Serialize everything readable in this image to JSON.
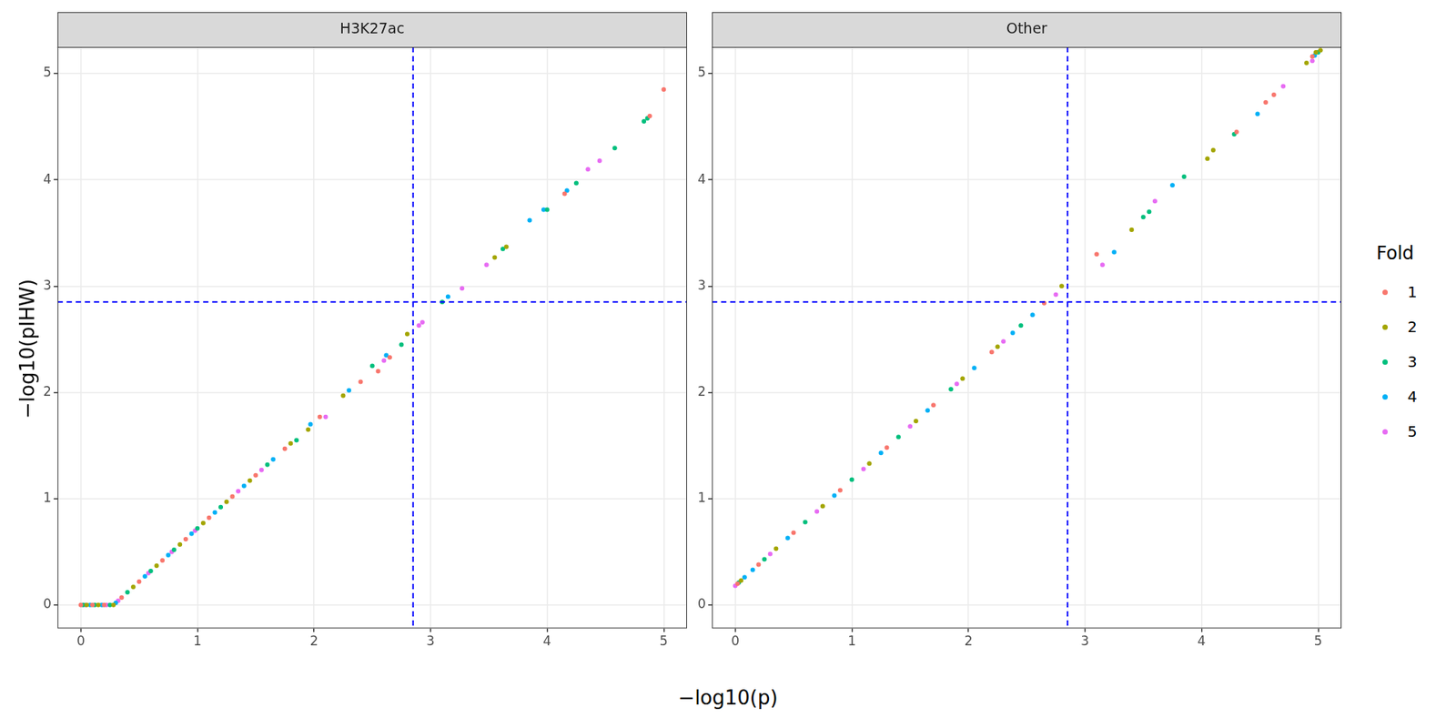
{
  "x_label": "−log10(p)",
  "y_label": "−log10(pIHW)",
  "legend_title": "Fold",
  "chart_data": [
    {
      "type": "scatter",
      "title": "H3K27ac",
      "grid": true,
      "xlim": [
        -0.2,
        5.2
      ],
      "xticks": [
        0,
        1,
        2,
        3,
        4,
        5
      ],
      "ylim": [
        -0.22,
        5.25
      ],
      "yticks": [
        0,
        1,
        2,
        3,
        4,
        5
      ],
      "reference_lines": {
        "x": [
          2.85
        ],
        "y": [
          2.85
        ],
        "color": "#0000ff",
        "line_style": "dashed"
      },
      "series": [
        {
          "name": "1",
          "color": "#F8766D",
          "x": [
            0,
            0.1,
            0.2,
            0.35,
            0.5,
            0.7,
            0.9,
            1.1,
            1.3,
            1.5,
            1.75,
            2.05,
            2.4,
            2.55,
            2.65,
            4.15,
            4.88,
            5.0
          ],
          "values": [
            0,
            0,
            0,
            0.07,
            0.22,
            0.42,
            0.62,
            0.82,
            1.02,
            1.22,
            1.47,
            1.77,
            2.1,
            2.2,
            2.33,
            3.87,
            4.6,
            4.85
          ]
        },
        {
          "name": "2",
          "color": "#A3A500",
          "x": [
            0.05,
            0.15,
            0.28,
            0.45,
            0.65,
            0.85,
            1.05,
            1.25,
            1.45,
            1.8,
            1.95,
            2.25,
            2.8,
            3.55,
            3.65
          ],
          "values": [
            0,
            0,
            0,
            0.17,
            0.37,
            0.57,
            0.77,
            0.97,
            1.17,
            1.52,
            1.65,
            1.97,
            2.55,
            3.27,
            3.37
          ]
        },
        {
          "name": "3",
          "color": "#00BF7D",
          "x": [
            0.02,
            0.12,
            0.25,
            0.4,
            0.6,
            0.8,
            1.0,
            1.2,
            1.6,
            1.85,
            2.5,
            2.75,
            3.1,
            3.62,
            4.0,
            4.25,
            4.58,
            4.83,
            4.86
          ],
          "values": [
            0,
            0,
            0,
            0.12,
            0.32,
            0.52,
            0.72,
            0.92,
            1.32,
            1.55,
            2.25,
            2.45,
            2.85,
            3.35,
            3.72,
            3.97,
            4.3,
            4.55,
            4.58
          ]
        },
        {
          "name": "4",
          "color": "#00B0F6",
          "x": [
            0.08,
            0.18,
            0.3,
            0.55,
            0.75,
            0.95,
            1.15,
            1.4,
            1.65,
            1.97,
            2.3,
            2.62,
            3.15,
            3.85,
            3.97,
            4.17
          ],
          "values": [
            0,
            0,
            0.02,
            0.27,
            0.47,
            0.67,
            0.87,
            1.12,
            1.37,
            1.7,
            2.02,
            2.35,
            2.9,
            3.62,
            3.72,
            3.9
          ]
        },
        {
          "name": "5",
          "color": "#E76BF3",
          "x": [
            0.04,
            0.22,
            0.32,
            0.58,
            0.78,
            0.98,
            1.35,
            1.55,
            2.1,
            2.6,
            2.9,
            2.93,
            3.27,
            3.48,
            4.35,
            4.45
          ],
          "values": [
            0,
            0,
            0.04,
            0.3,
            0.5,
            0.7,
            1.07,
            1.27,
            1.77,
            2.3,
            2.63,
            2.66,
            2.98,
            3.2,
            4.1,
            4.18
          ]
        }
      ]
    },
    {
      "type": "scatter",
      "title": "Other",
      "grid": true,
      "legend": "right",
      "xlim": [
        -0.2,
        5.2
      ],
      "xticks": [
        0,
        1,
        2,
        3,
        4,
        5
      ],
      "ylim": [
        -0.22,
        5.25
      ],
      "yticks": [
        0,
        1,
        2,
        3,
        4,
        5
      ],
      "reference_lines": {
        "x": [
          2.85
        ],
        "y": [
          2.85
        ],
        "color": "#0000ff",
        "line_style": "dashed"
      },
      "series": [
        {
          "name": "1",
          "color": "#F8766D",
          "x": [
            0.02,
            0.2,
            0.5,
            0.9,
            1.3,
            1.7,
            2.2,
            2.65,
            3.1,
            4.3,
            4.55,
            4.62,
            4.95
          ],
          "values": [
            0.2,
            0.38,
            0.68,
            1.08,
            1.48,
            1.88,
            2.38,
            2.84,
            3.3,
            4.45,
            4.73,
            4.8,
            5.16
          ]
        },
        {
          "name": "2",
          "color": "#A3A500",
          "x": [
            0.05,
            0.35,
            0.75,
            1.15,
            1.55,
            1.95,
            2.25,
            2.8,
            3.4,
            4.05,
            4.1,
            4.9,
            4.98,
            5.02
          ],
          "values": [
            0.23,
            0.53,
            0.93,
            1.33,
            1.73,
            2.13,
            2.43,
            3.0,
            3.53,
            4.2,
            4.28,
            5.1,
            5.2,
            5.22
          ]
        },
        {
          "name": "3",
          "color": "#00BF7D",
          "x": [
            0.03,
            0.25,
            0.6,
            1.0,
            1.4,
            1.85,
            2.45,
            3.5,
            3.55,
            3.85,
            4.28,
            5.0
          ],
          "values": [
            0.21,
            0.43,
            0.78,
            1.18,
            1.58,
            2.03,
            2.63,
            3.65,
            3.7,
            4.03,
            4.43,
            5.2
          ]
        },
        {
          "name": "4",
          "color": "#00B0F6",
          "x": [
            0.08,
            0.15,
            0.45,
            0.85,
            1.25,
            1.65,
            2.05,
            2.38,
            2.55,
            3.25,
            3.75,
            4.48,
            4.97
          ],
          "values": [
            0.26,
            0.33,
            0.63,
            1.03,
            1.43,
            1.83,
            2.23,
            2.56,
            2.73,
            3.32,
            3.95,
            4.62,
            5.17
          ]
        },
        {
          "name": "5",
          "color": "#E76BF3",
          "x": [
            0.0,
            0.3,
            0.7,
            1.1,
            1.5,
            1.9,
            2.3,
            2.75,
            3.15,
            3.6,
            4.7,
            4.95
          ],
          "values": [
            0.18,
            0.48,
            0.88,
            1.28,
            1.68,
            2.08,
            2.48,
            2.92,
            3.2,
            3.8,
            4.88,
            5.12
          ]
        }
      ]
    }
  ]
}
